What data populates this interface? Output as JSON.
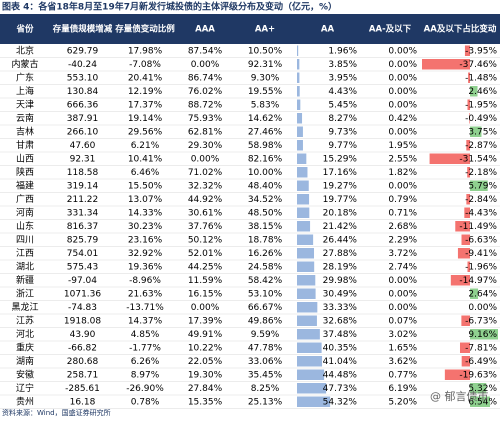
{
  "header": {
    "title": "图表 4：各省18年8月至19年7月新发行城投债的主体评级分布及变动（亿元，%）"
  },
  "table": {
    "columns": [
      "省份",
      "存量债规模增减",
      "存量债变动比例",
      "AAA",
      "AA+",
      "AA",
      "AA-及以下",
      "AA及以下占比变动"
    ],
    "rows": [
      [
        "北京",
        "629.79",
        "17.98%",
        "87.54%",
        "10.50%",
        "1.96%",
        "0.00%",
        "-3.95%"
      ],
      [
        "内蒙古",
        "-40.24",
        "-7.08%",
        "0.00%",
        "92.31%",
        "3.85%",
        "0.00%",
        "-37.46%"
      ],
      [
        "广东",
        "553.10",
        "20.41%",
        "86.74%",
        "9.30%",
        "3.95%",
        "0.00%",
        "-1.48%"
      ],
      [
        "上海",
        "130.84",
        "12.19%",
        "76.02%",
        "19.55%",
        "4.43%",
        "0.00%",
        "2.46%"
      ],
      [
        "天津",
        "666.36",
        "17.37%",
        "88.72%",
        "5.83%",
        "5.45%",
        "0.00%",
        "-1.95%"
      ],
      [
        "云南",
        "387.91",
        "19.14%",
        "75.93%",
        "14.62%",
        "8.27%",
        "0.42%",
        "-0.49%"
      ],
      [
        "吉林",
        "266.10",
        "29.56%",
        "62.81%",
        "27.46%",
        "9.73%",
        "0.00%",
        "3.75%"
      ],
      [
        "甘肃",
        "47.60",
        "6.21%",
        "29.30%",
        "58.98%",
        "9.77%",
        "1.95%",
        "-2.87%"
      ],
      [
        "山西",
        "92.31",
        "10.41%",
        "0.00%",
        "82.16%",
        "15.29%",
        "2.55%",
        "-31.54%"
      ],
      [
        "陕西",
        "118.58",
        "6.46%",
        "71.02%",
        "10.00%",
        "17.16%",
        "1.82%",
        "-2.18%"
      ],
      [
        "福建",
        "319.14",
        "15.50%",
        "32.32%",
        "48.40%",
        "19.27%",
        "0.00%",
        "5.79%"
      ],
      [
        "广西",
        "211.22",
        "13.07%",
        "44.92%",
        "34.52%",
        "19.77%",
        "0.79%",
        "-2.84%"
      ],
      [
        "河南",
        "331.34",
        "14.33%",
        "30.61%",
        "48.50%",
        "20.18%",
        "0.71%",
        "-4.43%"
      ],
      [
        "山东",
        "816.37",
        "30.23%",
        "37.76%",
        "38.15%",
        "21.42%",
        "2.68%",
        "-11.49%"
      ],
      [
        "四川",
        "825.79",
        "23.16%",
        "50.12%",
        "18.78%",
        "26.44%",
        "2.29%",
        "-6.63%"
      ],
      [
        "江西",
        "754.01",
        "32.92%",
        "52.01%",
        "16.26%",
        "27.88%",
        "3.72%",
        "-9.41%"
      ],
      [
        "湖北",
        "575.43",
        "19.36%",
        "44.25%",
        "24.58%",
        "28.19%",
        "2.74%",
        "-1.96%"
      ],
      [
        "新疆",
        "-97.04",
        "-8.96%",
        "11.59%",
        "58.42%",
        "29.98%",
        "0.00%",
        "-14.97%"
      ],
      [
        "浙江",
        "1071.36",
        "21.63%",
        "16.15%",
        "53.10%",
        "30.49%",
        "0.00%",
        "2.64%"
      ],
      [
        "黑龙江",
        "-74.83",
        "-13.71%",
        "0.00%",
        "66.67%",
        "33.33%",
        "0.00%",
        "0.00%"
      ],
      [
        "江苏",
        "1918.08",
        "14.37%",
        "17.39%",
        "49.86%",
        "32.68%",
        "0.07%",
        "-6.73%"
      ],
      [
        "河北",
        "43.90",
        "4.85%",
        "49.91%",
        "9.59%",
        "37.48%",
        "3.02%",
        "9.16%"
      ],
      [
        "重庆",
        "-66.82",
        "-1.77%",
        "10.22%",
        "47.78%",
        "40.35%",
        "1.65%",
        "-7.81%"
      ],
      [
        "湖南",
        "280.68",
        "6.26%",
        "22.05%",
        "33.06%",
        "41.04%",
        "3.62%",
        "-6.49%"
      ],
      [
        "安徽",
        "258.71",
        "8.97%",
        "19.30%",
        "35.45%",
        "44.48%",
        "0.77%",
        "-19.63%"
      ],
      [
        "辽宁",
        "-285.61",
        "-26.90%",
        "27.84%",
        "8.25%",
        "47.73%",
        "6.19%",
        "5.32%"
      ],
      [
        "贵州",
        "16.18",
        "0.78%",
        "15.35%",
        "25.13%",
        "54.32%",
        "5.20%",
        "6.54%"
      ]
    ]
  },
  "footer": {
    "source": "资料来源：Wind，国盛证券研究所",
    "watermark": "@ 郁言债市"
  }
}
